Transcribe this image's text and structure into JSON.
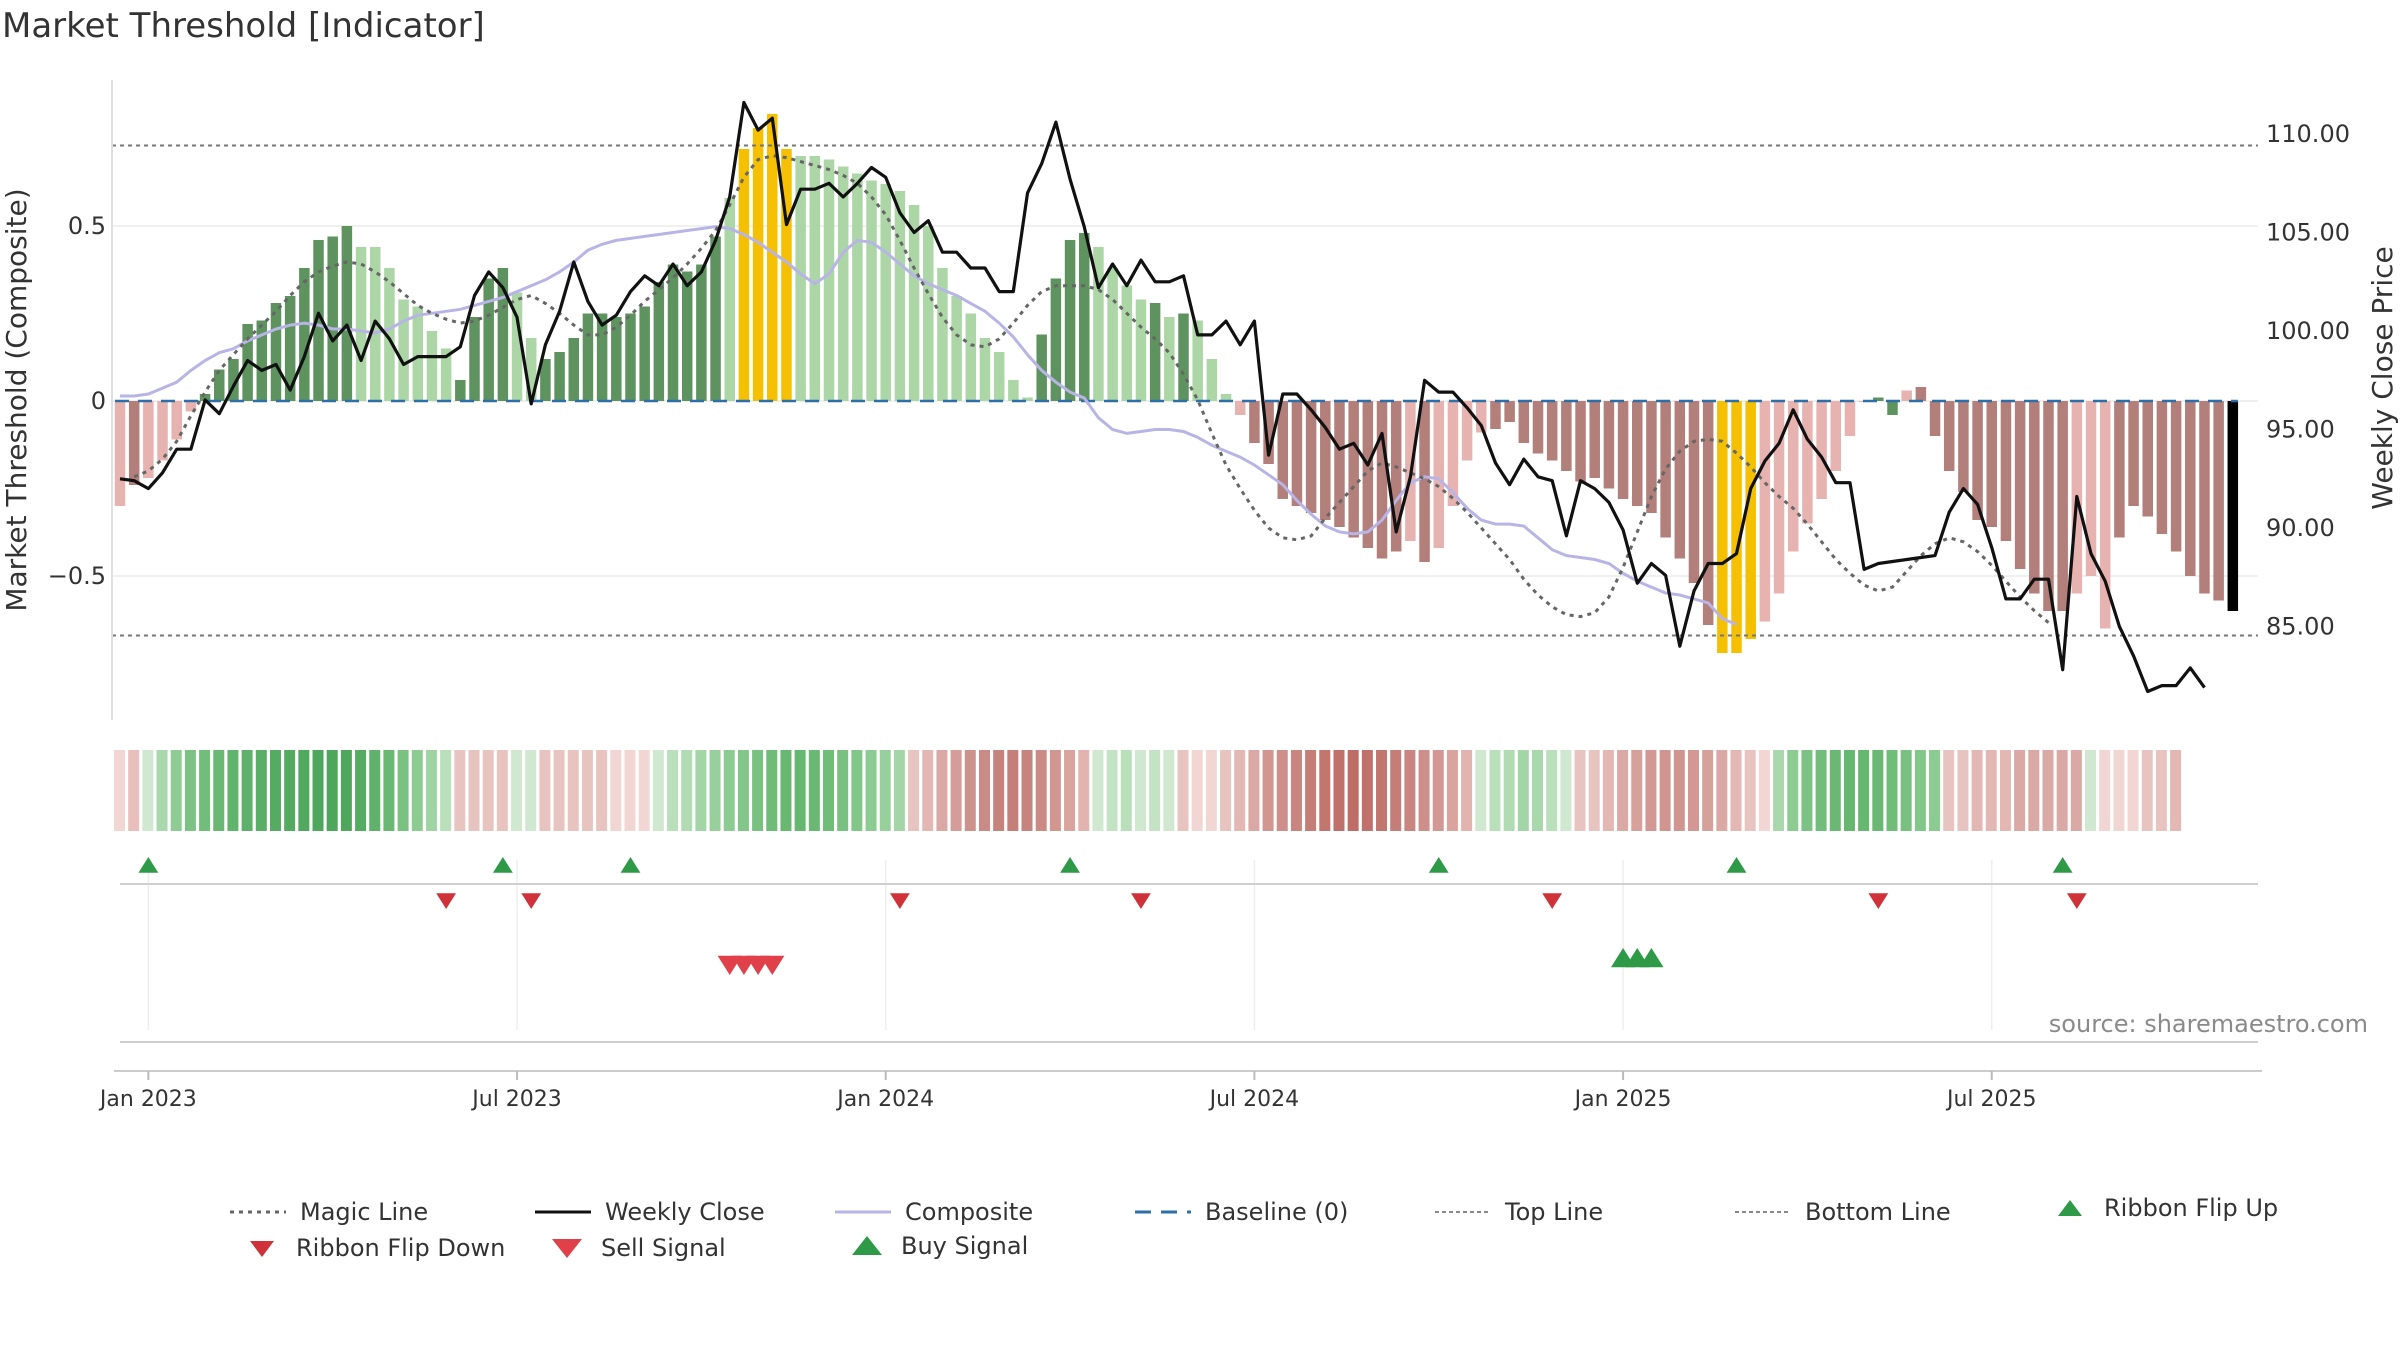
{
  "title": "Market Threshold [Indicator]",
  "source": "source: sharemaestro.com",
  "chart_data": {
    "type": "bar",
    "ylabel_left": "Market Threshold (Composite)",
    "ylabel_right": "Weekly Close Price",
    "y_left_ticks": [
      "0.5",
      "0",
      "−0.5"
    ],
    "y_left_tick_values": [
      0.5,
      0,
      -0.5
    ],
    "y_right_ticks": [
      "110.00",
      "105.00",
      "100.00",
      "95.00",
      "90.00",
      "85.00"
    ],
    "y_right_tick_values": [
      110,
      105,
      100,
      95,
      90,
      85
    ],
    "x_ticks": [
      "Jan 2023",
      "Jul 2023",
      "Jan 2024",
      "Jul 2024",
      "Jan 2025",
      "Jul 2025"
    ],
    "x_tick_weeks": [
      2,
      28,
      54,
      80,
      106,
      132
    ],
    "top_line": 0.73,
    "bottom_line": -0.67,
    "composite": [
      -0.3,
      -0.24,
      -0.22,
      -0.17,
      -0.11,
      -0.03,
      0.02,
      0.09,
      0.12,
      0.22,
      0.23,
      0.28,
      0.3,
      0.38,
      0.46,
      0.47,
      0.5,
      0.44,
      0.44,
      0.38,
      0.29,
      0.27,
      0.2,
      0.15,
      0.06,
      0.24,
      0.35,
      0.38,
      0.31,
      0.18,
      0.12,
      0.14,
      0.18,
      0.25,
      0.25,
      0.24,
      0.25,
      0.27,
      0.34,
      0.39,
      0.37,
      0.39,
      0.47,
      0.58,
      0.72,
      0.78,
      0.82,
      0.72,
      0.7,
      0.7,
      0.69,
      0.67,
      0.65,
      0.63,
      0.62,
      0.6,
      0.56,
      0.5,
      0.38,
      0.3,
      0.25,
      0.18,
      0.14,
      0.06,
      0.01,
      0.19,
      0.35,
      0.46,
      0.48,
      0.44,
      0.38,
      0.33,
      0.29,
      0.28,
      0.24,
      0.25,
      0.23,
      0.12,
      0.02,
      -0.04,
      -0.12,
      -0.18,
      -0.28,
      -0.3,
      -0.32,
      -0.34,
      -0.36,
      -0.39,
      -0.42,
      -0.45,
      -0.43,
      -0.4,
      -0.46,
      -0.42,
      -0.3,
      -0.17,
      -0.09,
      -0.08,
      -0.06,
      -0.12,
      -0.15,
      -0.17,
      -0.2,
      -0.23,
      -0.22,
      -0.25,
      -0.28,
      -0.3,
      -0.32,
      -0.39,
      -0.45,
      -0.52,
      -0.64,
      -0.72,
      -0.72,
      -0.68,
      -0.63,
      -0.55,
      -0.43,
      -0.35,
      -0.28,
      -0.2,
      -0.1,
      0.0,
      0.01,
      -0.04,
      0.03,
      0.04,
      -0.1,
      -0.2,
      -0.26,
      -0.34,
      -0.36,
      -0.4,
      -0.48,
      -0.55,
      -0.6,
      -0.6,
      -0.55,
      -0.5,
      -0.65,
      -0.39,
      -0.3,
      -0.33,
      -0.38,
      -0.43,
      -0.5,
      -0.55,
      -0.57,
      -0.6
    ],
    "bar_colors": [
      "#e6b3b0",
      "#b27f7a",
      "#e6b3b0",
      "#e6b3b0",
      "#e6b3b0",
      "#e6b3b0",
      "#5e9360",
      "#5e9360",
      "#5e9360",
      "#5e9360",
      "#5e9360",
      "#5e9360",
      "#5e9360",
      "#5e9360",
      "#5e9360",
      "#5e9360",
      "#5e9360",
      "#acd6a6",
      "#acd6a6",
      "#acd6a6",
      "#acd6a6",
      "#acd6a6",
      "#acd6a6",
      "#acd6a6",
      "#5e9360",
      "#5e9360",
      "#5e9360",
      "#5e9360",
      "#acd6a6",
      "#acd6a6",
      "#5e9360",
      "#5e9360",
      "#5e9360",
      "#5e9360",
      "#5e9360",
      "#5e9360",
      "#5e9360",
      "#5e9360",
      "#5e9360",
      "#5e9360",
      "#5e9360",
      "#5e9360",
      "#5e9360",
      "#acd6a6",
      "#f5c000",
      "#f5c000",
      "#f5c000",
      "#f5c000",
      "#acd6a6",
      "#acd6a6",
      "#acd6a6",
      "#acd6a6",
      "#acd6a6",
      "#acd6a6",
      "#acd6a6",
      "#acd6a6",
      "#acd6a6",
      "#acd6a6",
      "#acd6a6",
      "#acd6a6",
      "#acd6a6",
      "#acd6a6",
      "#acd6a6",
      "#acd6a6",
      "#acd6a6",
      "#5e9360",
      "#5e9360",
      "#5e9360",
      "#5e9360",
      "#acd6a6",
      "#acd6a6",
      "#acd6a6",
      "#acd6a6",
      "#5e9360",
      "#acd6a6",
      "#5e9360",
      "#acd6a6",
      "#acd6a6",
      "#acd6a6",
      "#e6b3b0",
      "#b27f7a",
      "#b27f7a",
      "#b27f7a",
      "#b27f7a",
      "#b27f7a",
      "#b27f7a",
      "#b27f7a",
      "#b27f7a",
      "#b27f7a",
      "#b27f7a",
      "#b27f7a",
      "#e6b3b0",
      "#b27f7a",
      "#e6b3b0",
      "#e6b3b0",
      "#e6b3b0",
      "#e6b3b0",
      "#b27f7a",
      "#b27f7a",
      "#b27f7a",
      "#b27f7a",
      "#b27f7a",
      "#b27f7a",
      "#b27f7a",
      "#b27f7a",
      "#b27f7a",
      "#b27f7a",
      "#b27f7a",
      "#b27f7a",
      "#b27f7a",
      "#b27f7a",
      "#b27f7a",
      "#b27f7a",
      "#f5c000",
      "#f5c000",
      "#f5c000",
      "#e6b3b0",
      "#e6b3b0",
      "#e6b3b0",
      "#e6b3b0",
      "#e6b3b0",
      "#e6b3b0",
      "#e6b3b0",
      "#e6b3b0",
      "#5e9360",
      "#5e9360",
      "#e6b3b0",
      "#b27f7a",
      "#b27f7a",
      "#b27f7a",
      "#b27f7a",
      "#b27f7a",
      "#b27f7a",
      "#b27f7a",
      "#b27f7a",
      "#b27f7a",
      "#b27f7a",
      "#b27f7a",
      "#e6b3b0",
      "#e6b3b0",
      "#e6b3b0",
      "#b27f7a",
      "#b27f7a",
      "#b27f7a",
      "#b27f7a",
      "#b27f7a",
      "#b27f7a",
      "#b27f7a",
      "#b27f7a"
    ],
    "weekly_close": [
      92.5,
      92.4,
      92.0,
      92.8,
      94.0,
      94.0,
      96.5,
      95.8,
      97.2,
      98.5,
      98.0,
      98.3,
      97.0,
      98.7,
      100.9,
      99.5,
      100.3,
      98.5,
      100.5,
      99.6,
      98.3,
      98.7,
      98.7,
      98.7,
      99.2,
      101.8,
      103.0,
      102.2,
      100.7,
      96.3,
      99.3,
      101.0,
      103.5,
      101.5,
      100.3,
      100.8,
      102.0,
      102.8,
      102.3,
      103.4,
      102.3,
      103.0,
      104.6,
      106.8,
      111.6,
      110.2,
      110.8,
      105.4,
      107.2,
      107.2,
      107.5,
      106.8,
      107.5,
      108.3,
      107.8,
      106.0,
      105.0,
      105.6,
      104.0,
      104.0,
      103.2,
      103.2,
      102.0,
      102.0,
      107.0,
      108.5,
      110.6,
      107.7,
      105.3,
      102.2,
      103.4,
      102.3,
      103.6,
      102.5,
      102.5,
      102.8,
      99.8,
      99.8,
      100.5,
      99.3,
      100.5,
      93.7,
      96.8,
      96.8,
      96.0,
      95.1,
      94.0,
      94.3,
      93.2,
      94.8,
      89.8,
      92.6,
      97.5,
      96.9,
      96.9,
      96.1,
      95.2,
      93.3,
      92.2,
      93.5,
      92.6,
      92.4,
      89.6,
      92.4,
      92.0,
      91.3,
      89.9,
      87.2,
      88.2,
      87.6,
      84.0,
      86.8,
      88.2,
      88.2,
      88.7,
      92.0,
      93.4,
      94.3,
      96.0,
      94.5,
      93.6,
      92.3,
      92.3,
      87.9,
      88.2,
      88.3,
      88.4,
      88.5,
      88.6,
      90.8,
      92.0,
      91.2,
      89.0,
      86.4,
      86.4,
      87.4,
      87.4,
      82.8,
      91.6,
      88.7,
      87.3,
      85.0,
      83.5,
      81.7,
      82.0,
      82.0,
      82.9,
      81.9
    ],
    "magic_line": [
      92.6,
      92.9,
      93.5,
      94.4,
      95.7,
      96.9,
      98.0,
      98.8,
      99.6,
      100.3,
      101.0,
      101.8,
      102.5,
      103.0,
      103.3,
      103.5,
      103.4,
      103.0,
      102.5,
      101.9,
      101.3,
      100.9,
      100.6,
      100.4,
      100.5,
      100.8,
      101.2,
      101.6,
      101.8,
      101.4,
      100.9,
      100.3,
      99.8,
      99.8,
      100.2,
      100.8,
      101.5,
      102.1,
      102.7,
      103.4,
      104.2,
      105.1,
      106.4,
      107.8,
      108.7,
      108.9,
      108.8,
      108.6,
      108.4,
      108.2,
      107.9,
      107.5,
      106.8,
      105.9,
      104.6,
      103.2,
      101.9,
      100.7,
      99.8,
      99.3,
      99.2,
      99.6,
      100.4,
      101.3,
      102.0,
      102.3,
      102.3,
      102.3,
      102.1,
      101.6,
      100.9,
      100.2,
      99.6,
      98.9,
      97.8,
      96.5,
      94.8,
      93.2,
      92.0,
      90.9,
      90.0,
      89.5,
      89.4,
      89.6,
      90.5,
      91.3,
      92.1,
      92.9,
      93.3,
      93.1,
      92.8,
      92.5,
      92.1,
      91.5,
      90.8,
      90.0,
      89.2,
      88.4,
      87.4,
      86.6,
      86.0,
      85.6,
      85.5,
      85.7,
      86.5,
      88.0,
      89.8,
      91.6,
      93.0,
      93.9,
      94.4,
      94.5,
      94.4,
      93.8,
      93.1,
      92.3,
      91.6,
      91.0,
      90.2,
      89.3,
      88.4,
      87.7,
      87.1,
      86.8,
      87.0,
      87.8,
      88.6,
      89.2,
      89.5,
      89.3,
      88.8,
      88.1,
      87.3,
      86.5,
      85.8,
      85.2
    ],
    "magic_line_start_week": 1,
    "composite_line": [
      96.7,
      96.7,
      96.8,
      97.1,
      97.4,
      98.0,
      98.5,
      98.9,
      99.1,
      99.5,
      99.8,
      100.1,
      100.3,
      100.4,
      100.3,
      100.1,
      100.1,
      100.0,
      99.9,
      100.1,
      100.5,
      100.8,
      100.9,
      101.0,
      101.1,
      101.3,
      101.5,
      101.7,
      102.0,
      102.3,
      102.6,
      103.0,
      103.5,
      104.1,
      104.4,
      104.6,
      104.7,
      104.8,
      104.9,
      105.0,
      105.1,
      105.2,
      105.3,
      105.2,
      104.9,
      104.5,
      104.0,
      103.5,
      102.9,
      102.4,
      102.9,
      104.0,
      104.6,
      104.5,
      104.0,
      103.4,
      102.8,
      102.4,
      102.1,
      101.8,
      101.4,
      101.0,
      100.4,
      99.7,
      98.8,
      98.0,
      97.4,
      96.9,
      96.6,
      95.6,
      95.0,
      94.8,
      94.9,
      95.0,
      95.0,
      94.9,
      94.6,
      94.2,
      93.9,
      93.6,
      93.2,
      92.7,
      92.2,
      91.4,
      90.7,
      90.1,
      89.8,
      89.7,
      89.8,
      90.4,
      91.4,
      92.3,
      92.6,
      92.5,
      91.8,
      91.0,
      90.4,
      90.2,
      90.2,
      90.1,
      89.5,
      88.9,
      88.6,
      88.5,
      88.4,
      88.2,
      87.7,
      87.3,
      87.0,
      86.7,
      86.6,
      86.4,
      86.2,
      85.4,
      85.1
    ],
    "composite_line_start_week": 0,
    "ribbon_colors": [
      "#f2d6d4",
      "#e8bfbc",
      "#cfe8cf",
      "#a8d8ab",
      "#8fcb94",
      "#7cc284",
      "#72bd7b",
      "#6ab874",
      "#62b36d",
      "#5eb06a",
      "#5aae66",
      "#56ab63",
      "#54aa61",
      "#51a85f",
      "#4fa75d",
      "#4ea65c",
      "#4fa75d",
      "#55ab62",
      "#5fb16b",
      "#6ab874",
      "#7ac282",
      "#8ccb92",
      "#a1d4a5",
      "#b9dfbb",
      "#e8c4c1",
      "#e8c4c1",
      "#e8c4c1",
      "#e8c4c1",
      "#cfe8cf",
      "#cfe8cf",
      "#e8c4c1",
      "#e8c4c1",
      "#e8c4c1",
      "#e8c4c1",
      "#e8c4c1",
      "#f2d6d4",
      "#f2d6d4",
      "#f2d6d4",
      "#cfe8cf",
      "#b9dfbb",
      "#b0dbb3",
      "#a3d5a7",
      "#97d09c",
      "#8ccb92",
      "#82c689",
      "#78c180",
      "#6fbc78",
      "#68b871",
      "#66b76f",
      "#6ab874",
      "#70bc79",
      "#78c180",
      "#82c689",
      "#8ccb92",
      "#97d09c",
      "#a3d5a7",
      "#e8c4c1",
      "#e3b8b4",
      "#dba9a5",
      "#d49d99",
      "#ce928d",
      "#ca8a85",
      "#c6827d",
      "#c57f7a",
      "#c8837e",
      "#cb8a85",
      "#d29691",
      "#d9a39e",
      "#e3b3af",
      "#cfe8cf",
      "#c4e3c5",
      "#b9dfbb",
      "#cfe8cf",
      "#c4e3c5",
      "#cfe8cf",
      "#e8c4c1",
      "#f2d6d4",
      "#f2d6d4",
      "#e8c4c1",
      "#e3b8b4",
      "#dba9a5",
      "#d29691",
      "#ce8f8a",
      "#c9857f",
      "#c57d77",
      "#c27670",
      "#c0716b",
      "#be6d67",
      "#c0716b",
      "#c27670",
      "#c57d77",
      "#c9857f",
      "#ce8f8a",
      "#d39893",
      "#d9a39e",
      "#e3b3af",
      "#cfe8cf",
      "#b9dfbb",
      "#b0dbb3",
      "#a3d5a7",
      "#a8d8ab",
      "#b9dfbb",
      "#cfe8cf",
      "#e8c4c1",
      "#e8c4c1",
      "#e3b8b4",
      "#dba9a5",
      "#d6a09b",
      "#d39893",
      "#d09590",
      "#d09590",
      "#d39893",
      "#d6a09b",
      "#dba9a5",
      "#e3b8b4",
      "#e8c4c1",
      "#f2d6d4",
      "#a8d8ab",
      "#8ccb92",
      "#7cc284",
      "#72bd7b",
      "#6ab874",
      "#66b76f",
      "#66b76f",
      "#6ab874",
      "#70bc79",
      "#78c180",
      "#82c689",
      "#8ccb92",
      "#e8c4c1",
      "#e8c4c1",
      "#e3b8b4",
      "#e3b8b4",
      "#e3b8b4",
      "#dba9a5",
      "#dba9a5",
      "#dba9a5",
      "#dba9a5",
      "#dba9a5",
      "#cfe8cf",
      "#f2d6d4",
      "#f2d6d4",
      "#f2d6d4",
      "#e8c4c1",
      "#e8c4c1",
      "#e3b8b4"
    ],
    "ribbon_flip_up_weeks": [
      2,
      27,
      36,
      67,
      93,
      114,
      137
    ],
    "ribbon_flip_down_weeks": [
      23,
      29,
      55,
      72,
      101,
      124,
      138
    ],
    "sell_signal_weeks": [
      43,
      44,
      45,
      46
    ],
    "buy_signal_weeks": [
      106,
      107,
      108
    ],
    "legend": {
      "magic_line": "Magic Line",
      "weekly_close": "Weekly Close",
      "composite": "Composite",
      "baseline": "Baseline (0)",
      "top_line": "Top Line",
      "bottom_line": "Bottom Line",
      "ribbon_flip_up": "Ribbon Flip Up",
      "ribbon_flip_down": "Ribbon Flip Down",
      "sell_signal": "Sell Signal",
      "buy_signal": "Buy Signal"
    },
    "colors": {
      "bull_strong": "#5e9360",
      "bull_weak": "#acd6a6",
      "bear_strong": "#b27f7a",
      "bear_weak": "#e6b3b0",
      "extreme": "#f5c000",
      "weekly_close": "#111111",
      "magic_line": "#666666",
      "composite": "#b9b4e6",
      "baseline": "#2e6fa8",
      "flip_up": "#2e9a48",
      "flip_down": "#d0323a",
      "sell": "#e0404a",
      "buy": "#2e9a48"
    }
  }
}
